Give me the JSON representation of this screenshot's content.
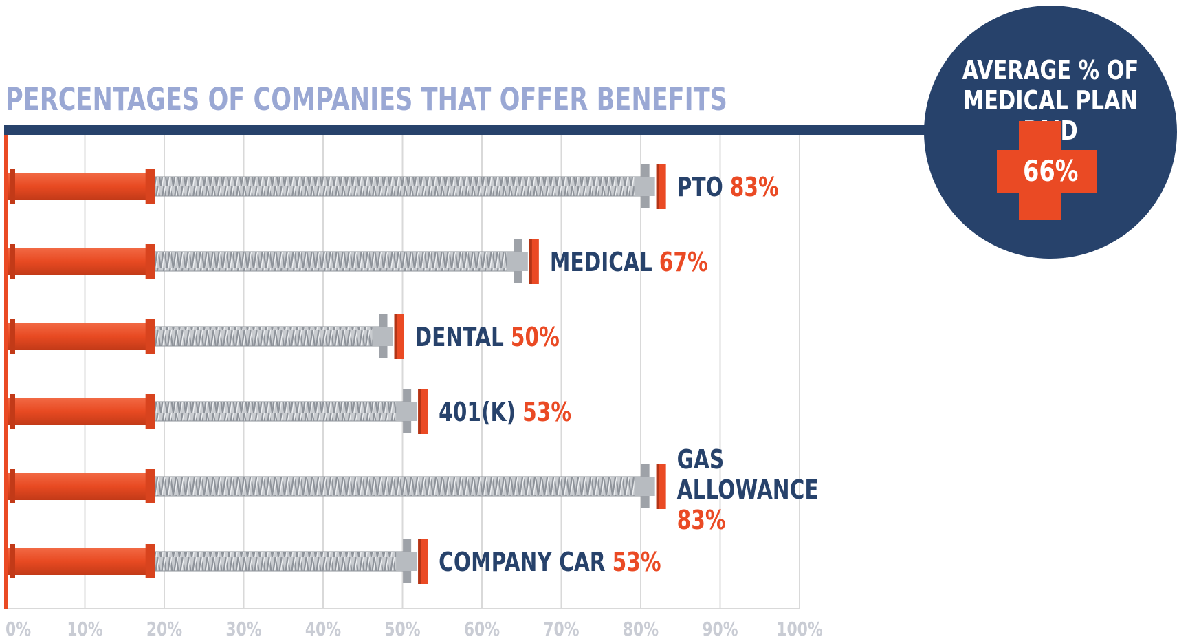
{
  "chart_data": {
    "type": "bar",
    "orientation": "horizontal",
    "title": "PERCENTAGES OF COMPANIES THAT OFFER BENEFITS",
    "categories": [
      "PTO",
      "MEDICAL",
      "DENTAL",
      "401(K)",
      "GAS ALLOWANCE",
      "COMPANY CAR"
    ],
    "values": [
      83,
      67,
      50,
      53,
      83,
      53
    ],
    "value_labels": [
      "83%",
      "67%",
      "50%",
      "53%",
      "83%",
      "53%"
    ],
    "xlim": [
      0,
      100
    ],
    "x_ticks": [
      0,
      10,
      20,
      30,
      40,
      50,
      60,
      70,
      80,
      90,
      100
    ],
    "x_tick_labels": [
      "0%",
      "10%",
      "20%",
      "30%",
      "40%",
      "50%",
      "60%",
      "70%",
      "80%",
      "90%",
      "100%"
    ],
    "grid": true,
    "legend": "none"
  },
  "badge": {
    "title": "AVERAGE % OF MEDICAL PLAN PAID",
    "value": "66%"
  },
  "colors": {
    "title": "#9aa8d4",
    "navy": "#27426b",
    "accent": "#ea4a24",
    "screw": "#a9adb2",
    "grid": "#d9d9d9"
  }
}
